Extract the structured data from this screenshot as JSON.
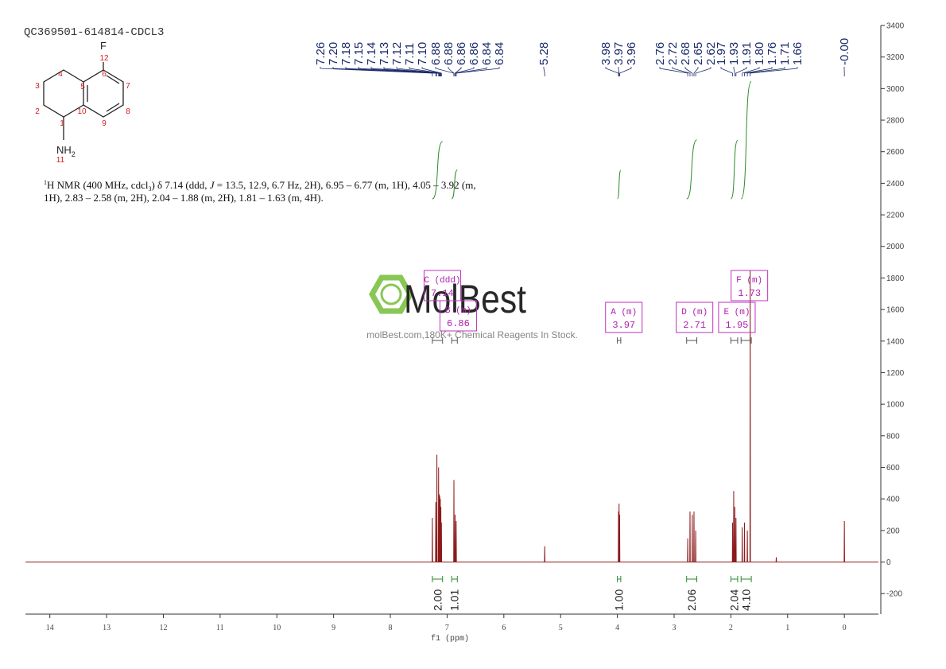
{
  "chart_data": {
    "type": "line",
    "title": "QC369501-614814-CDCL3",
    "x_label": "f1 (ppm)",
    "color": "#8b1a1a",
    "xlim": [
      14.43,
      -0.6
    ],
    "xticks": [
      14,
      13,
      12,
      11,
      10,
      9,
      8,
      7,
      6,
      5,
      4,
      3,
      2,
      1,
      0
    ],
    "ylim": [
      -330,
      3400
    ],
    "yticks": [
      -200,
      0,
      200,
      400,
      600,
      800,
      1000,
      1200,
      1400,
      1600,
      1800,
      2000,
      2200,
      2400,
      2600,
      2800,
      3000,
      3200,
      3400
    ],
    "x": [
      14.43,
      7.264,
      7.26,
      7.256,
      7.204,
      7.2,
      7.196,
      7.184,
      7.18,
      7.176,
      7.154,
      7.15,
      7.146,
      7.144,
      7.14,
      7.136,
      7.134,
      7.13,
      7.126,
      7.124,
      7.12,
      7.116,
      7.114,
      7.11,
      7.106,
      7.104,
      7.1,
      7.096,
      6.884,
      6.88,
      6.876,
      6.864,
      6.86,
      6.856,
      6.844,
      6.84,
      6.836,
      5.284,
      5.28,
      5.276,
      3.984,
      3.98,
      3.976,
      3.974,
      3.97,
      3.966,
      3.964,
      3.96,
      3.956,
      2.764,
      2.76,
      2.756,
      2.724,
      2.72,
      2.716,
      2.684,
      2.68,
      2.676,
      2.654,
      2.65,
      2.646,
      2.624,
      2.62,
      2.616,
      1.974,
      1.97,
      1.966,
      1.954,
      1.95,
      1.946,
      1.934,
      1.93,
      1.926,
      1.914,
      1.91,
      1.906,
      1.804,
      1.8,
      1.796,
      1.764,
      1.76,
      1.756,
      1.714,
      1.71,
      1.706,
      1.664,
      1.66,
      1.656,
      1.204,
      1.2,
      1.196,
      0.004,
      0,
      -0.004,
      -0.6
    ],
    "values": [
      0,
      0,
      280,
      0,
      0,
      380,
      0,
      0,
      680,
      0,
      0,
      600,
      0,
      0,
      430,
      0,
      0,
      420,
      0,
      0,
      400,
      0,
      0,
      350,
      0,
      0,
      250,
      0,
      0,
      520,
      0,
      0,
      300,
      0,
      0,
      260,
      0,
      0,
      100,
      0,
      0,
      320,
      0,
      0,
      370,
      0,
      0,
      300,
      0,
      0,
      150,
      0,
      0,
      320,
      0,
      0,
      300,
      0,
      0,
      320,
      0,
      0,
      200,
      0,
      0,
      250,
      0,
      0,
      450,
      0,
      0,
      350,
      0,
      0,
      280,
      0,
      0,
      220,
      0,
      0,
      250,
      0,
      0,
      200,
      0,
      0,
      1850,
      0,
      0,
      30,
      0,
      0,
      260,
      0,
      0
    ],
    "peak_labels": [
      {
        "value": 7.26,
        "label": "7.26"
      },
      {
        "value": 7.2,
        "label": "7.20"
      },
      {
        "value": 7.18,
        "label": "7.18"
      },
      {
        "value": 7.15,
        "label": "7.15"
      },
      {
        "value": 7.14,
        "label": "7.14"
      },
      {
        "value": 7.13,
        "label": "7.13"
      },
      {
        "value": 7.12,
        "label": "7.12"
      },
      {
        "value": 7.11,
        "label": "7.11"
      },
      {
        "value": 7.1,
        "label": "7.10"
      },
      {
        "value": 6.88,
        "label": "6.88"
      },
      {
        "value": 6.88,
        "label": "6.88"
      },
      {
        "value": 6.86,
        "label": "6.86"
      },
      {
        "value": 6.86,
        "label": "6.86"
      },
      {
        "value": 6.84,
        "label": "6.84"
      },
      {
        "value": 6.84,
        "label": "6.84"
      },
      {
        "value": 5.28,
        "label": "5.28"
      },
      {
        "value": 3.98,
        "label": "3.98"
      },
      {
        "value": 3.97,
        "label": "3.97"
      },
      {
        "value": 3.96,
        "label": "3.96"
      },
      {
        "value": 2.76,
        "label": "2.76"
      },
      {
        "value": 2.72,
        "label": "2.72"
      },
      {
        "value": 2.68,
        "label": "2.68"
      },
      {
        "value": 2.65,
        "label": "2.65"
      },
      {
        "value": 2.62,
        "label": "2.62"
      },
      {
        "value": 1.97,
        "label": "1.97"
      },
      {
        "value": 1.93,
        "label": "1.93"
      },
      {
        "value": 1.91,
        "label": "1.91"
      },
      {
        "value": 1.8,
        "label": "1.80"
      },
      {
        "value": 1.76,
        "label": "1.76"
      },
      {
        "value": 1.71,
        "label": "1.71"
      },
      {
        "value": 1.66,
        "label": "1.66"
      },
      {
        "value": 0,
        "label": "-0.00"
      }
    ],
    "integrals": {
      "ranges": [
        [
          7.26,
          7.08
        ],
        [
          6.92,
          6.82
        ],
        [
          4.0,
          3.94
        ],
        [
          2.78,
          2.6
        ],
        [
          2.0,
          1.88
        ],
        [
          1.82,
          1.64
        ]
      ],
      "values": [
        2.0,
        1.01,
        1.0,
        2.06,
        2.04,
        4.1
      ],
      "value_labels": [
        "2.00",
        "1.01",
        "1.00",
        "2.06",
        "2.04",
        "4.10"
      ]
    },
    "multiplets": [
      {
        "label": "C (ddd)",
        "shift": 7.14
      },
      {
        "label": "B (m)",
        "shift": 6.86
      },
      {
        "label": "A (m)",
        "shift": 3.97
      },
      {
        "label": "D (m)",
        "shift": 2.71
      },
      {
        "label": "E (m)",
        "shift": 1.95
      },
      {
        "label": "F (m)",
        "shift": 1.73
      }
    ]
  },
  "molecule": {
    "symbols": [
      "F",
      "NH",
      "2"
    ],
    "numbers": [
      "12",
      "3",
      "4",
      "5",
      "6",
      "7",
      "8",
      "9",
      "10",
      "1",
      "2",
      "11"
    ]
  },
  "description": {
    "lines": [
      [
        "1",
        "H NMR (400 MHz, cdcl",
        "3",
        ") δ 7.14 (ddd, ",
        "J",
        " = 13.5, 12.9, 6.7 Hz, 2H), 6.95 – 6.77 (m, 1H), 4.05 – 3.92 (m,"
      ],
      [
        "1H), 2.83 – 2.58 (m, 2H), 2.04 – 1.88 (m, 2H), 1.81 – 1.63 (m, 4H)."
      ]
    ]
  },
  "watermark": {
    "logo": "MolBest",
    "tagline": "molBest.com,180K+ Chemical Reagents In Stock."
  }
}
